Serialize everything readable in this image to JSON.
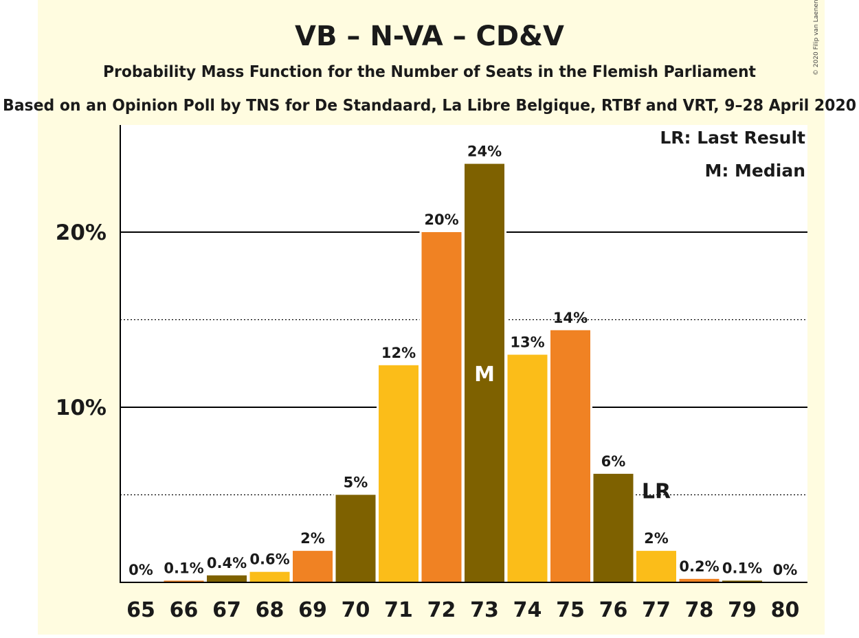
{
  "page": {
    "copyright": "© 2020 Filip van Laenen",
    "background_color": "#fffce0",
    "plot_background_color": "#ffffff"
  },
  "chart_data": {
    "type": "bar",
    "title": "VB – N-VA – CD&V",
    "subtitle": "Probability Mass Function for the Number of Seats in the Flemish Parliament",
    "source": "Based on an Opinion Poll by TNS for De Standaard, La Libre Belgique, RTBf and VRT, 9–28 April 2020",
    "xlabel": "",
    "ylabel": "",
    "ylim": [
      0,
      26
    ],
    "yticks": [
      {
        "value": 10,
        "label": "10%"
      },
      {
        "value": 20,
        "label": "20%"
      }
    ],
    "minor_gridlines": [
      5,
      15
    ],
    "legend": {
      "placement": "top-right",
      "items": [
        "LR: Last Result",
        "M: Median"
      ]
    },
    "categories": [
      "65",
      "66",
      "67",
      "68",
      "69",
      "70",
      "71",
      "72",
      "73",
      "74",
      "75",
      "76",
      "77",
      "78",
      "79",
      "80"
    ],
    "values": [
      0,
      0.1,
      0.4,
      0.6,
      1.8,
      5.0,
      12.4,
      20.0,
      23.9,
      13.0,
      14.4,
      6.2,
      1.8,
      0.2,
      0.1,
      0
    ],
    "value_labels": [
      "0%",
      "0.1%",
      "0.4%",
      "0.6%",
      "2%",
      "5%",
      "12%",
      "20%",
      "24%",
      "13%",
      "14%",
      "6%",
      "2%",
      "0.2%",
      "0.1%",
      "0%"
    ],
    "colors": [
      "#fbbd19",
      "#f08223",
      "#7e6100"
    ],
    "median": {
      "category": "73",
      "label": "M"
    },
    "last_result": {
      "category": "77",
      "label": "LR"
    }
  }
}
